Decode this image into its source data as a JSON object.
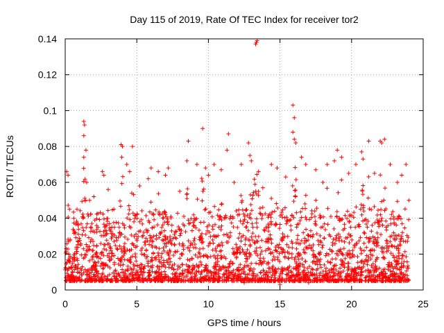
{
  "chart_data": {
    "type": "scatter",
    "title": "Day 115 of 2019, Rate Of TEC Index for receiver tor2",
    "xlabel": "GPS time / hours",
    "ylabel": "ROTI / TECUs",
    "xlim": [
      0,
      25
    ],
    "ylim": [
      0,
      0.14
    ],
    "xticks": [
      0,
      5,
      10,
      15,
      20,
      25
    ],
    "xtick_labels": [
      "0",
      "5",
      "10",
      "15",
      "20",
      "25"
    ],
    "yticks": [
      0,
      0.02,
      0.04,
      0.06,
      0.08,
      0.1,
      0.12,
      0.14
    ],
    "ytick_labels": [
      "0",
      "0.02",
      "0.04",
      "0.06",
      "0.08",
      "0.1",
      "0.12",
      "0.14"
    ],
    "grid": true,
    "marker": "+",
    "color": "#ff0000",
    "x_range_of_data": [
      0,
      24
    ],
    "series": [
      {
        "name": "ROTI",
        "note": "dense cloud; representative sample of envelope peaks",
        "points": [
          [
            0.1,
            0.066
          ],
          [
            0.2,
            0.064
          ],
          [
            0.3,
            0.045
          ],
          [
            0.6,
            0.04
          ],
          [
            0.9,
            0.036
          ],
          [
            1.3,
            0.094
          ],
          [
            1.35,
            0.092
          ],
          [
            1.3,
            0.086
          ],
          [
            1.45,
            0.078
          ],
          [
            1.3,
            0.074
          ],
          [
            1.5,
            0.06
          ],
          [
            1.7,
            0.05
          ],
          [
            2.0,
            0.052
          ],
          [
            2.6,
            0.066
          ],
          [
            2.7,
            0.064
          ],
          [
            3.0,
            0.056
          ],
          [
            3.4,
            0.045
          ],
          [
            3.9,
            0.081
          ],
          [
            4.0,
            0.08
          ],
          [
            3.95,
            0.074
          ],
          [
            4.3,
            0.07
          ],
          [
            4.5,
            0.066
          ],
          [
            4.7,
            0.08
          ],
          [
            5.2,
            0.058
          ],
          [
            5.8,
            0.062
          ],
          [
            6.0,
            0.068
          ],
          [
            6.5,
            0.066
          ],
          [
            7.0,
            0.064
          ],
          [
            7.2,
            0.068
          ],
          [
            8.0,
            0.055
          ],
          [
            8.5,
            0.072
          ],
          [
            8.6,
            0.083
          ],
          [
            9.2,
            0.07
          ],
          [
            9.6,
            0.09
          ],
          [
            9.8,
            0.068
          ],
          [
            10.0,
            0.064
          ],
          [
            10.4,
            0.07
          ],
          [
            10.9,
            0.067
          ],
          [
            11.4,
            0.087
          ],
          [
            11.3,
            0.078
          ],
          [
            11.8,
            0.06
          ],
          [
            12.3,
            0.07
          ],
          [
            12.8,
            0.082
          ],
          [
            12.9,
            0.075
          ],
          [
            13.0,
            0.072
          ],
          [
            13.3,
            0.137
          ],
          [
            13.35,
            0.138
          ],
          [
            13.4,
            0.139
          ],
          [
            13.5,
            0.066
          ],
          [
            13.8,
            0.057
          ],
          [
            14.4,
            0.07
          ],
          [
            14.8,
            0.068
          ],
          [
            15.4,
            0.063
          ],
          [
            15.9,
            0.103
          ],
          [
            16.0,
            0.096
          ],
          [
            15.9,
            0.088
          ],
          [
            16.0,
            0.084
          ],
          [
            16.1,
            0.082
          ],
          [
            16.5,
            0.074
          ],
          [
            16.8,
            0.07
          ],
          [
            17.5,
            0.067
          ],
          [
            18.0,
            0.06
          ],
          [
            18.3,
            0.07
          ],
          [
            18.8,
            0.072
          ],
          [
            19.0,
            0.078
          ],
          [
            19.3,
            0.074
          ],
          [
            19.8,
            0.065
          ],
          [
            20.3,
            0.07
          ],
          [
            20.7,
            0.077
          ],
          [
            20.8,
            0.073
          ],
          [
            21.2,
            0.083
          ],
          [
            21.6,
            0.065
          ],
          [
            22.0,
            0.083
          ],
          [
            22.1,
            0.082
          ],
          [
            22.3,
            0.084
          ],
          [
            22.7,
            0.07
          ],
          [
            23.2,
            0.06
          ],
          [
            23.5,
            0.064
          ],
          [
            23.8,
            0.07
          ],
          [
            24.0,
            0.05
          ],
          [
            2.2,
            0.01
          ],
          [
            6.5,
            0.008
          ],
          [
            12.5,
            0.004
          ],
          [
            15.0,
            0.003
          ],
          [
            17.0,
            0.004
          ],
          [
            19.5,
            0.005
          ]
        ]
      }
    ]
  }
}
